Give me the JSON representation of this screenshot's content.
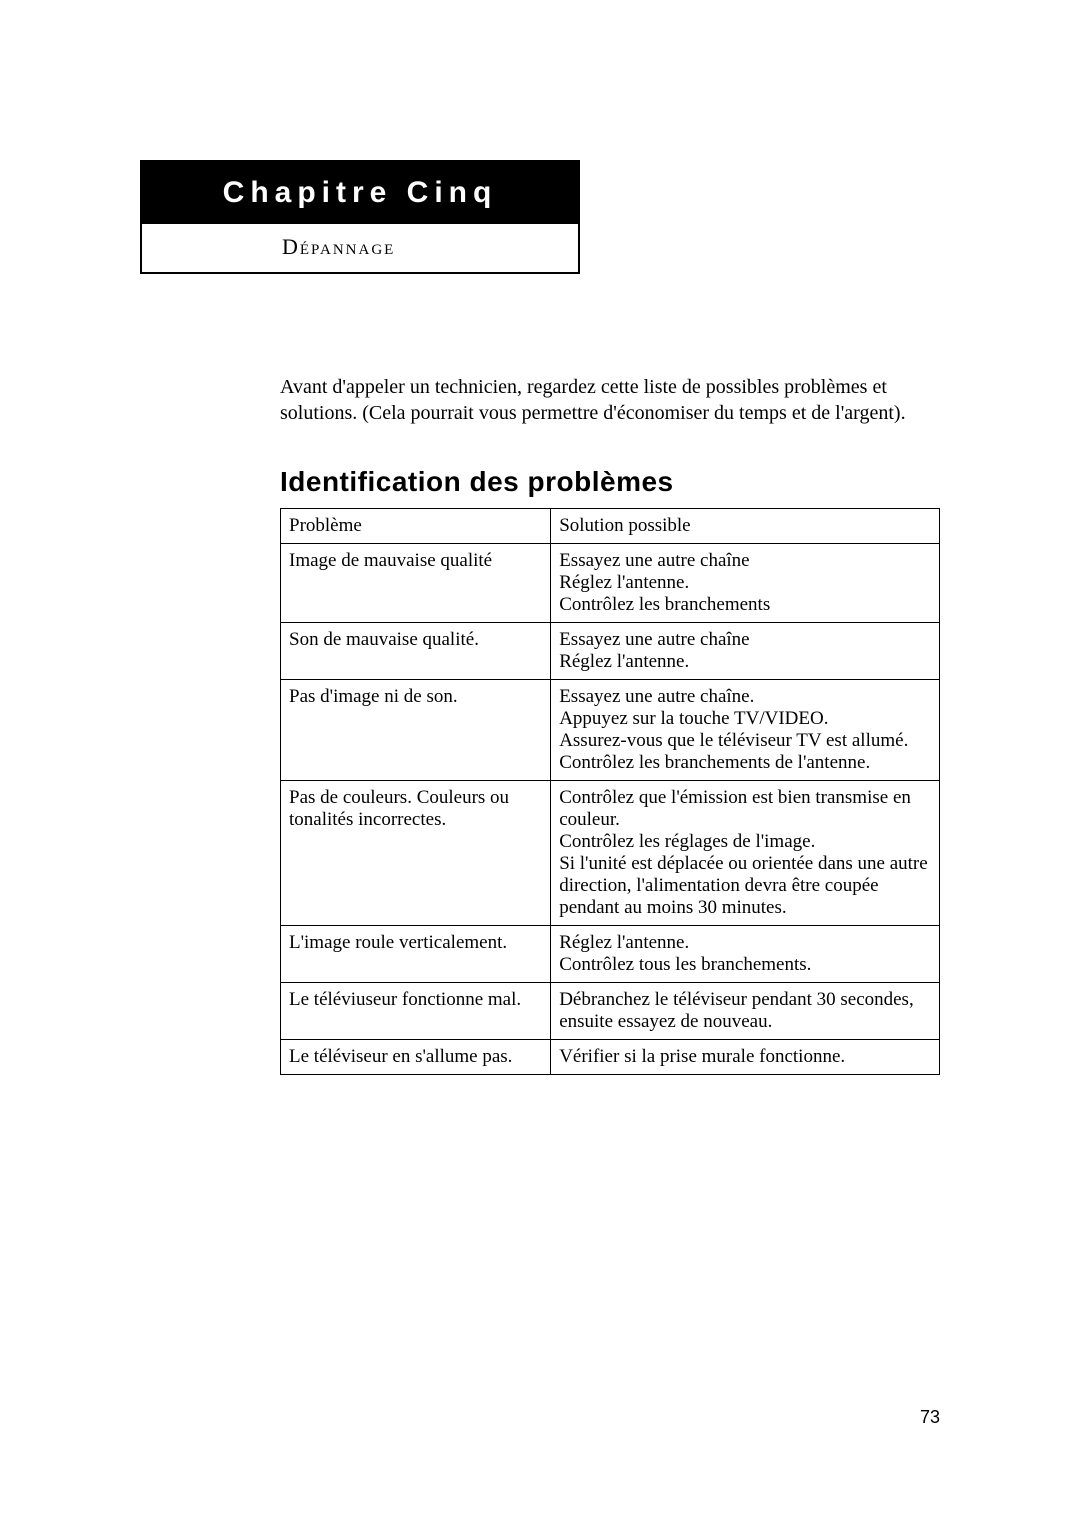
{
  "chapter": {
    "title": "Chapitre Cinq",
    "subtitle": "Dépannage"
  },
  "intro": "Avant d'appeler un technicien, regardez cette liste de possibles problèmes et solutions. (Cela pourrait vous permettre d'économiser du temps et de l'argent).",
  "section_heading": "Identification des problèmes",
  "table": {
    "header_problem": "Problème",
    "header_solution": "Solution possible",
    "rows": [
      {
        "problem": "Image de mauvaise qualité",
        "solution": "Essayez une autre chaîne\nRéglez l'antenne.\nContrôlez les branchements"
      },
      {
        "problem": "Son de mauvaise qualité.",
        "solution": "Essayez une autre chaîne\nRéglez l'antenne."
      },
      {
        "problem": "Pas d'image ni de son.",
        "solution": "Essayez une autre chaîne.\nAppuyez sur la touche TV/VIDEO.\nAssurez-vous que le téléviseur TV est allumé.\nContrôlez les branchements de l'antenne."
      },
      {
        "problem": "Pas de couleurs. Couleurs ou tonalités incorrectes.",
        "solution": "Contrôlez que l'émission est bien transmise en couleur.\nContrôlez les réglages de l'image.\nSi l'unité est déplacée ou orientée dans une autre direction, l'alimentation devra être coupée pendant au moins 30 minutes."
      },
      {
        "problem": "L'image roule verticalement.",
        "solution": "Réglez l'antenne.\nContrôlez tous les branchements."
      },
      {
        "problem": "Le téléviuseur fonctionne mal.",
        "solution": "Débranchez le téléviseur  pendant 30 secondes, ensuite essayez de nouveau."
      },
      {
        "problem": "Le téléviseur en s'allume pas.",
        "solution": "Vérifier si la prise murale fonctionne."
      }
    ]
  },
  "page_number": "73",
  "colors": {
    "page_bg": "#ffffff",
    "text": "#000000",
    "chapter_bg": "#000000",
    "chapter_text": "#ffffff",
    "border": "#000000"
  }
}
